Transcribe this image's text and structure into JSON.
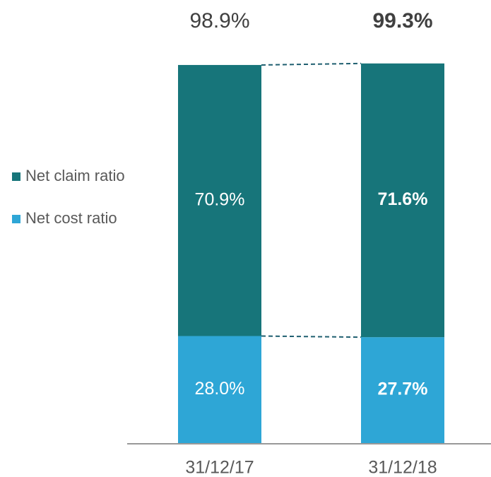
{
  "chart_data": {
    "type": "stacked_bar",
    "categories": [
      "31/12/17",
      "31/12/18"
    ],
    "series": [
      {
        "name": "Net cost ratio",
        "color": "#2ea6d6",
        "values": [
          28.0,
          27.7
        ],
        "value_labels": [
          "28.0%",
          "27.7%"
        ]
      },
      {
        "name": "Net claim ratio",
        "color": "#17757a",
        "values": [
          70.9,
          71.6
        ],
        "value_labels": [
          "70.9%",
          "71.6%"
        ]
      }
    ],
    "totals": [
      98.9,
      99.3
    ],
    "total_labels": [
      "98.9%",
      "99.3%"
    ],
    "ylim": [
      0,
      100
    ]
  }
}
